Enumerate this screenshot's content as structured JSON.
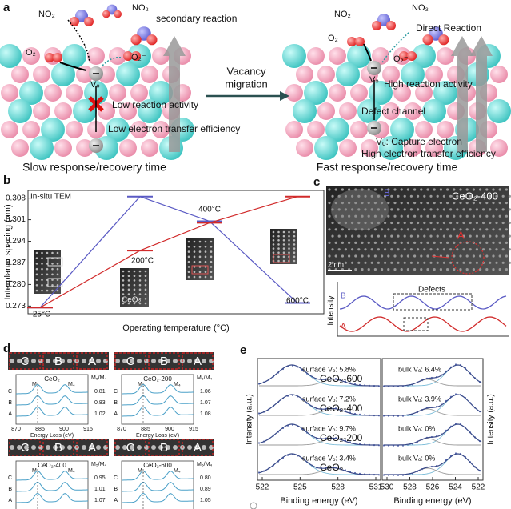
{
  "figure": {
    "a": {
      "label": "a",
      "no2_left": "NO₂",
      "no2minus_left": "NO₂⁻",
      "secondary": "secondary reaction",
      "o2_left": "O₂",
      "o2minus_left": "O₂⁻",
      "vo_left": "Vₒ",
      "low_activity": "Low reaction activity",
      "low_transfer": "Low electron transfer efficiency",
      "slow": "Slow response/recovery time",
      "migration_1": "Vacancy",
      "migration_2": "migration",
      "no2_right": "NO₂",
      "no3minus_right": "NO₃⁻",
      "direct": "Direct Reaction",
      "o2_right": "O₂",
      "o2minus_right": "O₂⁻",
      "vo_right": "Vₒ",
      "high_activity": "High reaction activity",
      "defect_channel": "Defect channel",
      "capture": "Vₒ: Capture electron",
      "high_transfer": "High electron transfer efficiency",
      "fast": "Fast response/recovery time"
    },
    "c": {
      "label": "c",
      "sample": "CeO₂-400",
      "region_b": "B",
      "region_a": "A",
      "scale": "2 nm",
      "ylabel": "Intensity",
      "defects": "Defects",
      "trace_b": "B",
      "trace_a": "A"
    },
    "d": {
      "label": "d",
      "subpanels": [
        {
          "sample": "CeO₂",
          "regions": [
            "C",
            "B",
            "A"
          ],
          "rows": [
            "C",
            "B",
            "A"
          ],
          "m5": "M₅",
          "m4": "M₄",
          "ratio_title": "M₅/M₄",
          "ratios": [
            "0.81",
            "0.83",
            "1.02"
          ],
          "xticks": [
            "870",
            "885",
            "900",
            "915"
          ],
          "xlabel": "Energy Loss (eV)"
        },
        {
          "sample": "CeO₂-200",
          "regions": [
            "C",
            "B",
            "A"
          ],
          "rows": [
            "C",
            "B",
            "A"
          ],
          "m5": "M₅",
          "m4": "M₄",
          "ratio_title": "M₅/M₄",
          "ratios": [
            "1.06",
            "1.07",
            "1.08"
          ],
          "xticks": [
            "870",
            "885",
            "900",
            "915"
          ],
          "xlabel": "Energy Loss (eV)"
        },
        {
          "sample": "CeO₂-400",
          "regions": [
            "C",
            "B",
            "A"
          ],
          "rows": [
            "C",
            "B",
            "A"
          ],
          "m5": "M₅",
          "m4": "M₄",
          "ratio_title": "M₅/M₄",
          "ratios": [
            "0.95",
            "1.01",
            "1.07"
          ],
          "xticks": [
            "870",
            "885",
            "900",
            "915"
          ],
          "xlabel": "Energy Loss (eV)"
        },
        {
          "sample": "CeO₂-600",
          "regions": [
            "C",
            "B",
            "A"
          ],
          "rows": [
            "C",
            "B",
            "A"
          ],
          "m5": "M₅",
          "m4": "M₄",
          "ratio_title": "M₅/M₄",
          "ratios": [
            "0.80",
            "0.89",
            "1.05"
          ],
          "xticks": [
            "870",
            "885",
            "900",
            "915"
          ],
          "xlabel": "Energy Loss (eV)"
        }
      ]
    },
    "e": {
      "label": "e",
      "left": {
        "samples": [
          "CeO₂-600",
          "CeO₂-400",
          "CeO₂-200",
          "CeO₂"
        ],
        "annotations": [
          "surface Vₒ: 5.8%",
          "surface Vₒ: 7.2%",
          "surface Vₒ: 9.7%",
          "surface Vₒ: 3.4%"
        ],
        "xticks": [
          "522",
          "525",
          "528",
          "531"
        ],
        "xlabel": "Binding energy (eV)",
        "ylabel": "Intensity (a.u.)"
      },
      "right": {
        "annotations": [
          "bulk Vₒ: 6.4%",
          "bulk Vₒ: 3.9%",
          "bulk Vₒ: 0%",
          "bulk Vₒ: 0%"
        ],
        "xticks": [
          "530",
          "528",
          "526",
          "524",
          "522"
        ],
        "xlabel": "Binding energy (eV)",
        "ylabel": "Intensity (a.u.)"
      }
    }
  },
  "chart_data": {
    "type": "line",
    "label": "b",
    "annotation": "In-situ TEM",
    "inset_label": "CeO₂",
    "categories": [
      "25°C",
      "200°C",
      "400°C",
      "600°C"
    ],
    "series": [
      {
        "color": "#5a5ac4",
        "values": [
          0.2725,
          0.3085,
          0.3005,
          0.274
        ]
      },
      {
        "color": "#d12b2b",
        "values": [
          0.2725,
          0.291,
          0.3,
          0.3085
        ]
      }
    ],
    "xlabel": "Operating temperature (°C)",
    "ylabel": "Interplanar spacing (nm)",
    "ylim": [
      0.2705,
      0.3105
    ],
    "yticks": [
      0.273,
      {
        "value": 0.28,
        "label": "0.280"
      },
      0.287,
      0.294,
      0.301,
      0.308
    ]
  }
}
